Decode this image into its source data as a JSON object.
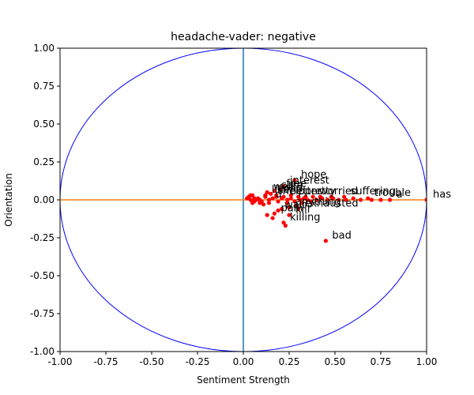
{
  "chart_data": {
    "type": "scatter",
    "title": "headache-vader: negative",
    "xlabel": "Sentiment Strength",
    "ylabel": "Orientation",
    "xlim": [
      -1.0,
      1.0
    ],
    "ylim": [
      -1.0,
      1.0
    ],
    "xticks": [
      "-1.00",
      "-0.75",
      "-0.50",
      "-0.25",
      "0.00",
      "0.25",
      "0.50",
      "0.75",
      "1.00"
    ],
    "yticks": [
      "-1.00",
      "-0.75",
      "-0.50",
      "-0.25",
      "0.00",
      "0.25",
      "0.50",
      "0.75",
      "1.00"
    ],
    "grid": false,
    "colors": {
      "points": "#ff0000",
      "unit_circle": "#0000ff",
      "horizontal_line": "#ff7f0e",
      "vertical_line": "#1f77b4"
    },
    "points": [
      {
        "x": 0.28,
        "y": 0.13,
        "label": "hope"
      },
      {
        "x": 0.22,
        "y": 0.09,
        "label": "interest"
      },
      {
        "x": 0.2,
        "y": 0.07,
        "label": "free"
      },
      {
        "x": 0.17,
        "y": 0.06,
        "label": "care"
      },
      {
        "x": 0.13,
        "y": 0.05,
        "label": "well"
      },
      {
        "x": 0.15,
        "y": 0.04,
        "label": "good"
      },
      {
        "x": 0.12,
        "y": 0.03,
        "label": "like"
      },
      {
        "x": 0.18,
        "y": 0.02,
        "label": "help"
      },
      {
        "x": 0.22,
        "y": 0.02,
        "label": "better"
      },
      {
        "x": 0.3,
        "y": 0.02,
        "label": "pretty"
      },
      {
        "x": 0.38,
        "y": 0.02,
        "label": "worried"
      },
      {
        "x": 0.55,
        "y": 0.02,
        "label": "suffering"
      },
      {
        "x": 0.68,
        "y": 0.01,
        "label": "trouble"
      },
      {
        "x": 0.8,
        "y": 0.0,
        "label": "a"
      },
      {
        "x": 1.0,
        "y": 0.0,
        "label": "has"
      },
      {
        "x": 0.14,
        "y": 0.0,
        "label": "d"
      },
      {
        "x": 0.07,
        "y": 0.0,
        "label": ""
      },
      {
        "x": 0.1,
        "y": -0.01,
        "label": ""
      },
      {
        "x": 0.05,
        "y": -0.02,
        "label": ""
      },
      {
        "x": 0.11,
        "y": -0.03,
        "label": ""
      },
      {
        "x": 0.25,
        "y": -0.05,
        "label": "anything"
      },
      {
        "x": 0.19,
        "y": -0.07,
        "label": "wait"
      },
      {
        "x": 0.3,
        "y": -0.06,
        "label": "exhausted"
      },
      {
        "x": 0.17,
        "y": -0.09,
        "label": "pain"
      },
      {
        "x": 0.13,
        "y": -0.1,
        "label": ""
      },
      {
        "x": 0.25,
        "y": -0.1,
        "label": "kill"
      },
      {
        "x": 0.16,
        "y": -0.12,
        "label": ""
      },
      {
        "x": 0.22,
        "y": -0.15,
        "label": "killing"
      },
      {
        "x": 0.23,
        "y": -0.17,
        "label": ""
      },
      {
        "x": 0.45,
        "y": -0.27,
        "label": "bad"
      }
    ],
    "dense_points": [
      [
        0.02,
        0.01
      ],
      [
        0.03,
        0.02
      ],
      [
        0.04,
        0.03
      ],
      [
        0.05,
        0.03
      ],
      [
        0.06,
        0.01
      ],
      [
        0.04,
        0.0
      ],
      [
        0.06,
        -0.01
      ],
      [
        0.08,
        0.01
      ],
      [
        0.09,
        0.0
      ],
      [
        0.09,
        -0.02
      ],
      [
        0.12,
        0.02
      ],
      [
        0.14,
        -0.02
      ],
      [
        0.16,
        0.01
      ],
      [
        0.19,
        -0.01
      ],
      [
        0.21,
        0.01
      ],
      [
        0.24,
        0.0
      ],
      [
        0.26,
        0.01
      ],
      [
        0.28,
        -0.01
      ],
      [
        0.31,
        0.0
      ],
      [
        0.33,
        0.01
      ],
      [
        0.35,
        0.0
      ],
      [
        0.37,
        -0.01
      ],
      [
        0.4,
        0.0
      ],
      [
        0.43,
        0.01
      ],
      [
        0.46,
        0.0
      ],
      [
        0.49,
        0.01
      ],
      [
        0.52,
        0.0
      ],
      [
        0.56,
        0.0
      ],
      [
        0.6,
        0.01
      ],
      [
        0.64,
        0.0
      ],
      [
        0.7,
        0.0
      ],
      [
        0.75,
        0.0
      ],
      [
        0.18,
        0.03
      ],
      [
        0.26,
        0.03
      ],
      [
        0.34,
        0.02
      ],
      [
        0.42,
        0.02
      ],
      [
        0.48,
        0.02
      ],
      [
        0.24,
        -0.02
      ],
      [
        0.32,
        -0.02
      ],
      [
        0.29,
        -0.04
      ],
      [
        0.21,
        -0.06
      ]
    ]
  }
}
